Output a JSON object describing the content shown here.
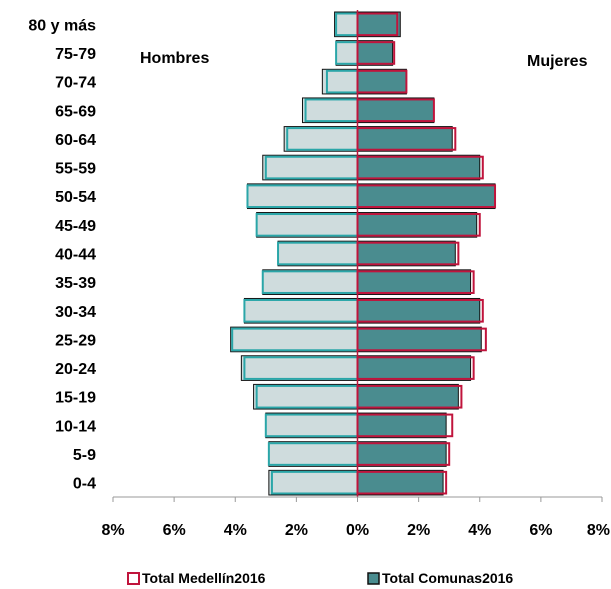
{
  "chart_data": {
    "type": "bar",
    "orientation": "horizontal",
    "categories": [
      "80 y más",
      "75-79",
      "70-74",
      "65-69",
      "60-64",
      "55-59",
      "50-54",
      "45-49",
      "40-44",
      "35-39",
      "30-34",
      "25-29",
      "20-24",
      "15-19",
      "10-14",
      "5-9",
      "0-4"
    ],
    "left_label": "Hombres",
    "right_label": "Mujeres",
    "xlim": [
      -8,
      8
    ],
    "x_ticks": [
      "8%",
      "6%",
      "4%",
      "2%",
      "0%",
      "2%",
      "4%",
      "6%",
      "8%"
    ],
    "grid": false,
    "legend_position": "bottom",
    "series": [
      {
        "name": "Total Medellín2016",
        "style": "outline",
        "color": "#c0143c",
        "hombres": [
          0.7,
          0.7,
          1.0,
          1.7,
          2.3,
          3.0,
          3.6,
          3.3,
          2.6,
          3.1,
          3.7,
          4.1,
          3.7,
          3.3,
          3.0,
          2.9,
          2.8
        ],
        "mujeres": [
          1.3,
          1.2,
          1.6,
          2.5,
          3.2,
          4.1,
          4.5,
          4.0,
          3.3,
          3.8,
          4.1,
          4.2,
          3.8,
          3.4,
          3.1,
          3.0,
          2.9
        ]
      },
      {
        "name": "Total Comunas2016",
        "style": "filled",
        "color": "#2e7d80",
        "hombres": [
          0.75,
          0.7,
          1.15,
          1.8,
          2.4,
          3.1,
          3.6,
          3.3,
          2.6,
          3.1,
          3.7,
          4.15,
          3.8,
          3.4,
          3.0,
          2.9,
          2.9
        ],
        "mujeres": [
          1.4,
          1.15,
          1.6,
          2.5,
          3.1,
          4.0,
          4.5,
          3.9,
          3.2,
          3.7,
          4.0,
          4.05,
          3.7,
          3.3,
          2.9,
          2.9,
          2.8
        ]
      }
    ]
  },
  "colors": {
    "male_fill": "#cfdcdd",
    "female_fill": "#4a8c8f",
    "male_edge": "#2aa6a8",
    "dark_edge": "#111111",
    "medellin_outline": "#c0143c",
    "axis": "#999999"
  }
}
